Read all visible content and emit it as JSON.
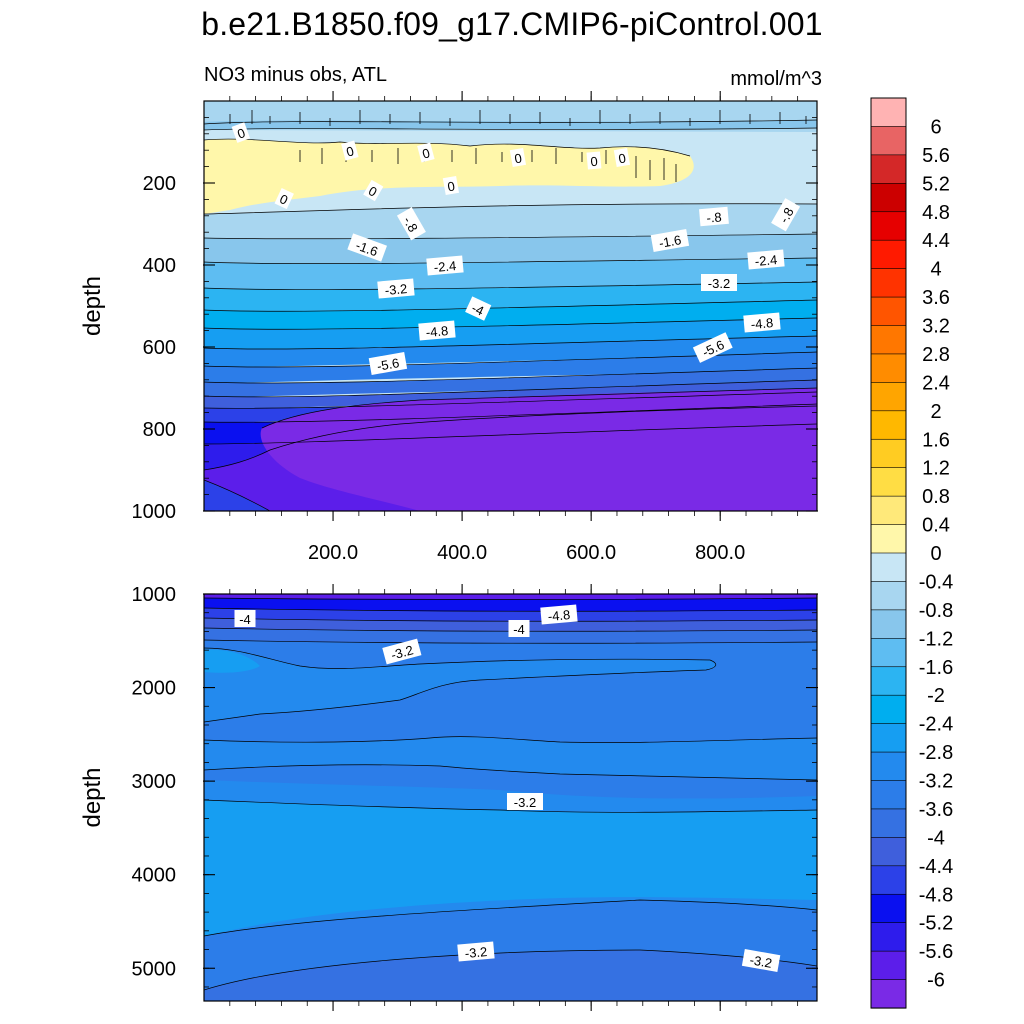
{
  "title": "b.e21.B1850.f09_g17.CMIP6-piControl.001",
  "subtitle_left": "NO3 minus obs, ATL",
  "subtitle_right": "mmol/m^3",
  "chart_data": [
    {
      "type": "contour",
      "name": "upper-panel",
      "ylabel": "depth",
      "ylim": [
        0,
        1000
      ],
      "xlim": [
        0,
        950
      ],
      "ytick_labels": [
        "200",
        "400",
        "600",
        "800",
        "1000"
      ],
      "ytick_values": [
        200,
        400,
        600,
        800,
        1000
      ],
      "xtick_labels": [
        "200.0",
        "400.0",
        "600.0",
        "800.0"
      ],
      "xtick_values": [
        200,
        400,
        600,
        800
      ],
      "contour_labels": [
        "0",
        "0",
        "0",
        "0",
        "0",
        "0",
        "0",
        "0",
        "0",
        "-.8",
        "-.8",
        "-.8",
        "-1.6",
        "-1.6",
        "-2.4",
        "-2.4",
        "-3.2",
        "-3.2",
        "-4",
        "-4.8",
        "-4.8",
        "-5.6",
        "-5.6"
      ]
    },
    {
      "type": "contour",
      "name": "lower-panel",
      "ylabel": "depth",
      "ylim": [
        1000,
        5350
      ],
      "xlim": [
        0,
        950
      ],
      "ytick_labels": [
        "1000",
        "2000",
        "3000",
        "4000",
        "5000"
      ],
      "ytick_values": [
        1000,
        2000,
        3000,
        4000,
        5000
      ],
      "contour_labels": [
        "-4",
        "-4",
        "-4.8",
        "-3.2",
        "-3.2",
        "-3.2",
        "-3.2"
      ]
    }
  ],
  "colorbar": {
    "labels": [
      "6",
      "5.6",
      "5.2",
      "4.8",
      "4.4",
      "4",
      "3.6",
      "3.2",
      "2.8",
      "2.4",
      "2",
      "1.6",
      "1.2",
      "0.8",
      "0.4",
      "0",
      "-0.4",
      "-0.8",
      "-1.2",
      "-1.6",
      "-2",
      "-2.4",
      "-2.8",
      "-3.2",
      "-3.6",
      "-4",
      "-4.4",
      "-4.8",
      "-5.2",
      "-5.6",
      "-6"
    ],
    "colors": [
      "#FFB3B3",
      "#E86464",
      "#D42828",
      "#CC0000",
      "#E60000",
      "#FF1A00",
      "#FF3300",
      "#FF5500",
      "#FF7700",
      "#FF8C00",
      "#FFA500",
      "#FFB800",
      "#FFCC22",
      "#FFDD44",
      "#FFE97A",
      "#FFF7AA",
      "#C8E6F5",
      "#A8D6F0",
      "#88C6EC",
      "#5EBDF2",
      "#2CB4F2",
      "#00AEEF",
      "#169EF2",
      "#238AEE",
      "#2C7DE9",
      "#3571E2",
      "#3F5FDC",
      "#2C41E8",
      "#0A10F0",
      "#2E1CEC",
      "#5C1EEA",
      "#7A2AE6"
    ]
  }
}
